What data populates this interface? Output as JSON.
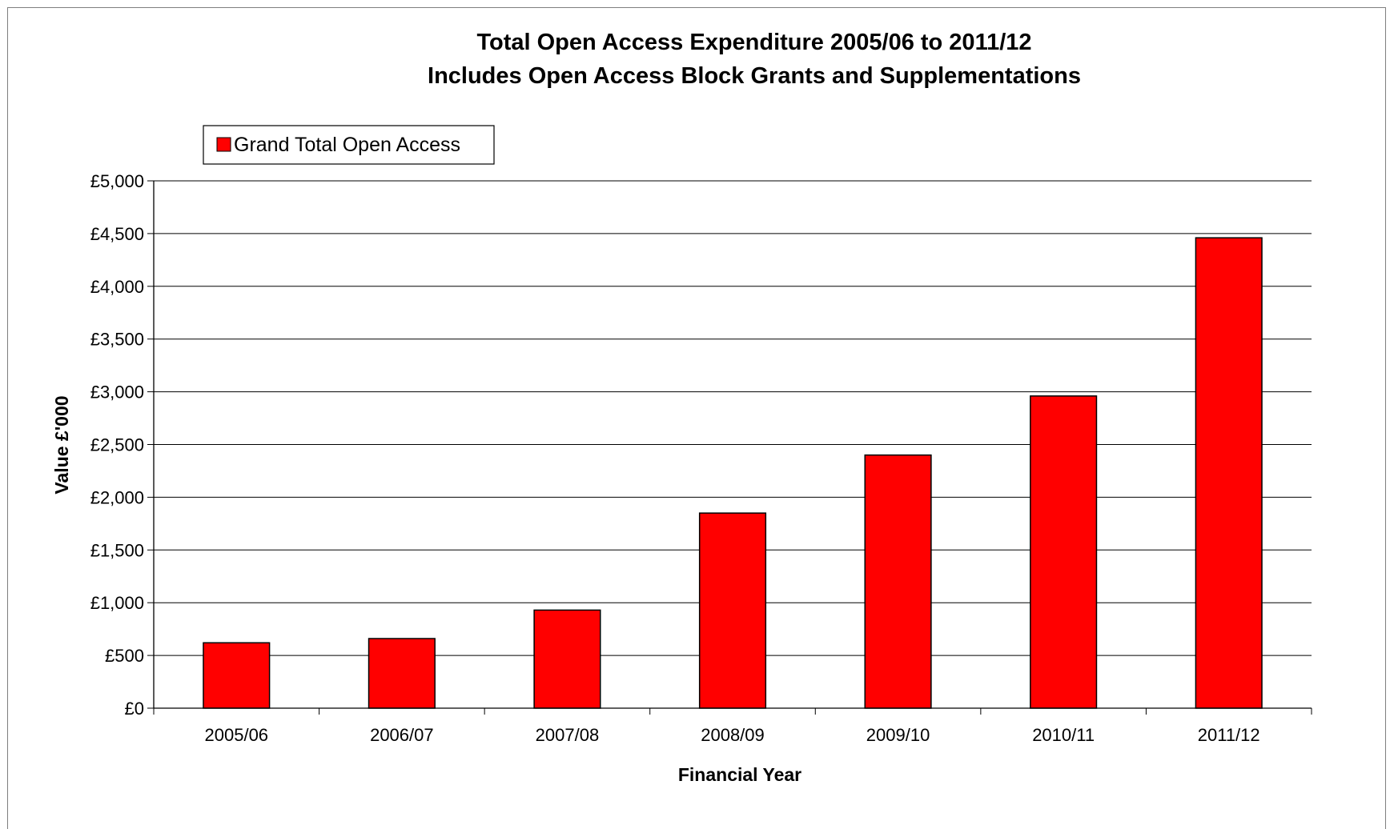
{
  "chart_data": {
    "type": "bar",
    "title": "Total Open Access Expenditure 2005/06 to 2011/12",
    "subtitle": "Includes Open Access Block Grants and Supplementations",
    "xlabel": "Financial Year",
    "ylabel": "Value £'000",
    "categories": [
      "2005/06",
      "2006/07",
      "2007/08",
      "2008/09",
      "2009/10",
      "2010/11",
      "2011/12"
    ],
    "series": [
      {
        "name": "Grand Total Open Access",
        "values": [
          620,
          660,
          930,
          1850,
          2400,
          2960,
          4460
        ]
      }
    ],
    "ylim": [
      0,
      5000
    ],
    "yticks": [
      0,
      500,
      1000,
      1500,
      2000,
      2500,
      3000,
      3500,
      4000,
      4500,
      5000
    ],
    "ytick_labels": [
      "£0",
      "£500",
      "£1,000",
      "£1,500",
      "£2,000",
      "£2,500",
      "£3,000",
      "£3,500",
      "£4,000",
      "£4,500",
      "£5,000"
    ],
    "grid": true,
    "legend_position": "top-left",
    "colors": {
      "bar": "#ff0000",
      "bar_outline": "#000000",
      "gridline": "#000000"
    }
  }
}
